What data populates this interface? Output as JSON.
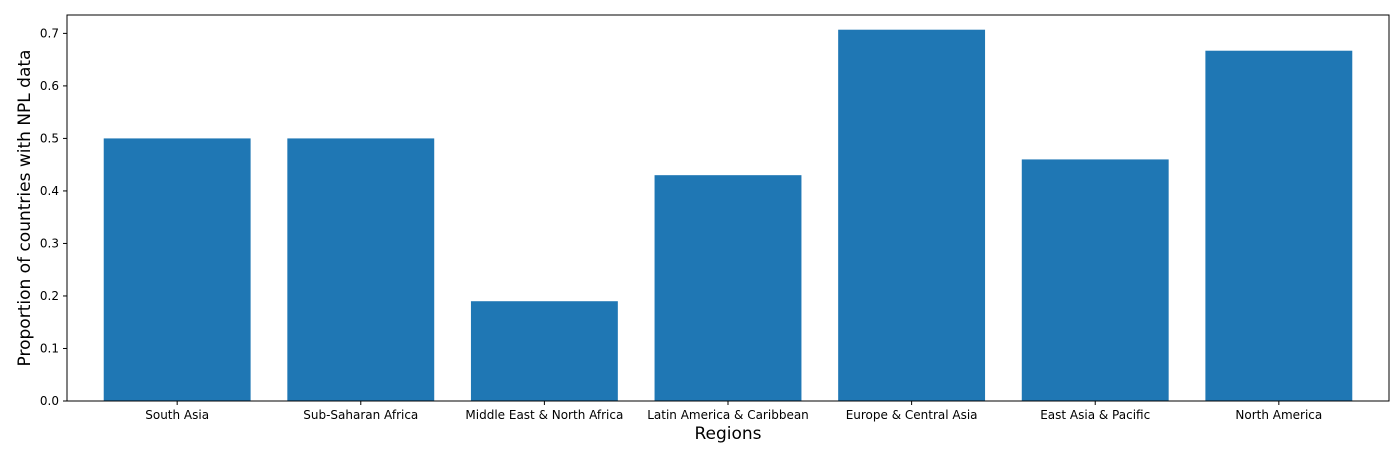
{
  "chart_data": {
    "type": "bar",
    "title": "",
    "xlabel": "Regions",
    "ylabel": "Proportion of countries with NPL data",
    "categories": [
      "South Asia",
      "Sub-Saharan Africa",
      "Middle East & North Africa",
      "Latin America & Caribbean",
      "Europe & Central Asia",
      "East Asia & Pacific",
      "North America"
    ],
    "values": [
      0.5,
      0.5,
      0.19,
      0.43,
      0.707,
      0.46,
      0.667
    ],
    "ylim": [
      0,
      0.735
    ],
    "yticks": [
      0.0,
      0.1,
      0.2,
      0.3,
      0.4,
      0.5,
      0.6,
      0.7
    ],
    "ytick_labels": [
      "0.0",
      "0.1",
      "0.2",
      "0.3",
      "0.4",
      "0.5",
      "0.6",
      "0.7"
    ],
    "grid": false,
    "legend": "none",
    "bar_color": "#1f77b4"
  }
}
